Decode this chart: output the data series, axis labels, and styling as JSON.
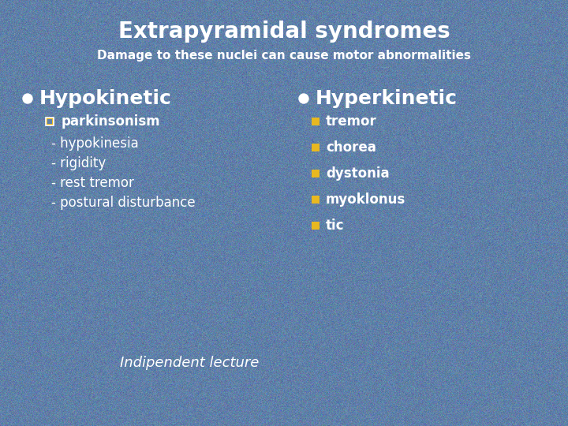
{
  "title": "Extrapyramidal syndromes",
  "subtitle": "Damage to these nuclei can cause motor abnormalities",
  "bg_color": "#6080a8",
  "title_color": "#ffffff",
  "subtitle_color": "#ffffff",
  "title_fontsize": 20,
  "subtitle_fontsize": 11,
  "left_header": "Hypokinetic",
  "right_header": "Hyperkinetic",
  "header_color": "#ffffff",
  "header_fontsize": 18,
  "bullet_circle_color": "#ffffff",
  "left_subheader_bullet_color": "#e8b820",
  "left_subheader": "parkinsonism",
  "left_items": [
    "- hypokinesia",
    "- rigidity",
    "- rest tremor",
    "- postural disturbance"
  ],
  "right_items": [
    "tremor",
    "chorea",
    "dystonia",
    "myoklonus",
    "tic"
  ],
  "right_bullet_color": "#e8b820",
  "item_color": "#ffffff",
  "item_fontsize": 12,
  "subheader_fontsize": 12,
  "footer": "Indipendent lecture",
  "footer_color": "#ffffff",
  "footer_fontsize": 13
}
